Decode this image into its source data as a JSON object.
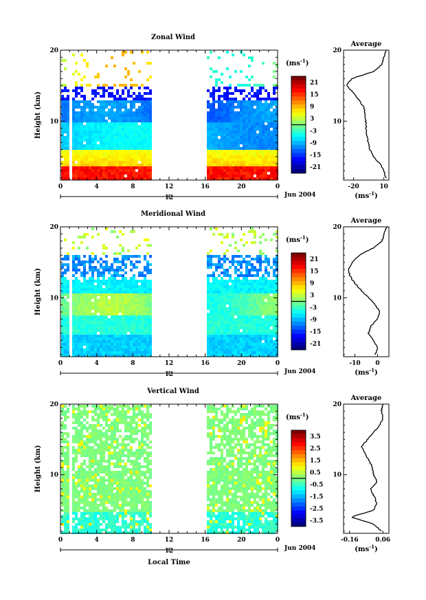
{
  "chart_data": [
    {
      "type": "heatmap",
      "title": "Zonal Wind",
      "ylabel": "Height (km)",
      "yticks": [
        "20",
        "10"
      ],
      "xticks": [
        "0",
        "4",
        "8",
        "12",
        "16",
        "20",
        "0"
      ],
      "x_range": [
        0,
        24
      ],
      "y_range": [
        1.7,
        20
      ],
      "date_label": "Jun 2004",
      "date_axis_tick": "12",
      "gap_hours": [
        10,
        16
      ],
      "colorbar": {
        "unit_base": "(ms",
        "unit_exp": "-1",
        "unit_close": ")",
        "ticks": [
          "21",
          "15",
          "9",
          "3",
          "-3",
          "-9",
          "-15",
          "-21"
        ],
        "zero_line": true
      },
      "profile": {
        "title": "Average",
        "yticks": [
          "20",
          "10"
        ],
        "xticks": [
          "-20",
          "10"
        ],
        "xlim": [
          -30,
          15
        ],
        "xunit_base": "(ms",
        "xunit_exp": "-1",
        "xunit_close": ")",
        "heights": [
          2,
          3,
          4,
          5,
          6,
          8,
          10,
          12,
          14,
          15,
          16,
          17,
          18,
          19,
          20
        ],
        "values": [
          12,
          10,
          6,
          0,
          -4,
          -7,
          -8,
          -10,
          -20,
          -27,
          -22,
          0,
          8,
          10,
          12
        ]
      }
    },
    {
      "type": "heatmap",
      "title": "Meridional Wind",
      "ylabel": "Height (km)",
      "yticks": [
        "20",
        "10"
      ],
      "xticks": [
        "0",
        "4",
        "8",
        "12",
        "16",
        "20",
        "0"
      ],
      "x_range": [
        0,
        24
      ],
      "y_range": [
        1.7,
        20
      ],
      "date_label": "Jun 2004",
      "date_axis_tick": "12",
      "gap_hours": [
        10,
        16
      ],
      "colorbar": {
        "unit_base": "(ms",
        "unit_exp": "-1",
        "unit_close": ")",
        "ticks": [
          "21",
          "15",
          "9",
          "3",
          "-3",
          "-9",
          "-15",
          "-21"
        ],
        "zero_line": true
      },
      "profile": {
        "title": "Average",
        "yticks": [
          "20",
          "10"
        ],
        "xticks": [
          "-10",
          "0"
        ],
        "xlim": [
          -15,
          5
        ],
        "xunit_base": "(ms",
        "xunit_exp": "-1",
        "xunit_close": ")",
        "heights": [
          2,
          3,
          4,
          5,
          6,
          7,
          8,
          9,
          10,
          11,
          12,
          13,
          14,
          15,
          16,
          17,
          18,
          19,
          20
        ],
        "values": [
          -1,
          0,
          -2,
          -4,
          -3,
          0,
          1,
          -1,
          -4,
          -7,
          -10,
          -12,
          -13,
          -11,
          -8,
          -2,
          2,
          3,
          4
        ]
      }
    },
    {
      "type": "heatmap",
      "title": "Vertical Wind",
      "ylabel": "Height (km)",
      "xlabel": "Local Time",
      "yticks": [
        "20",
        "10"
      ],
      "xticks": [
        "0",
        "4",
        "8",
        "12",
        "16",
        "20",
        "0"
      ],
      "x_range": [
        0,
        24
      ],
      "y_range": [
        1.7,
        20
      ],
      "date_label": "Jun 2004",
      "date_axis_tick": "12",
      "gap_hours": [
        10,
        16
      ],
      "colorbar": {
        "unit_base": "(ms",
        "unit_exp": "-1",
        "unit_close": ")",
        "ticks": [
          "3.5",
          "2.5",
          "1.5",
          "0.5",
          "-0.5",
          "-1.5",
          "-2.5",
          "-3.5"
        ],
        "zero_line": true
      },
      "profile": {
        "title": "Average",
        "yticks": [
          "20",
          "10"
        ],
        "xticks": [
          "-0.16",
          "0.06"
        ],
        "xlim": [
          -0.2,
          0.1
        ],
        "xunit_base": "(ms",
        "xunit_exp": "-1",
        "xunit_close": ")",
        "heights": [
          2,
          3,
          4,
          5,
          6,
          7,
          8,
          9,
          10,
          11,
          12,
          13,
          14,
          15,
          16,
          17,
          18,
          19,
          20
        ],
        "values": [
          0.05,
          0.0,
          -0.15,
          0.0,
          0.02,
          0.0,
          -0.02,
          0.02,
          0.0,
          -0.01,
          -0.03,
          -0.06,
          -0.08,
          -0.04,
          0.0,
          0.04,
          0.06,
          0.05,
          0.06
        ]
      }
    }
  ]
}
